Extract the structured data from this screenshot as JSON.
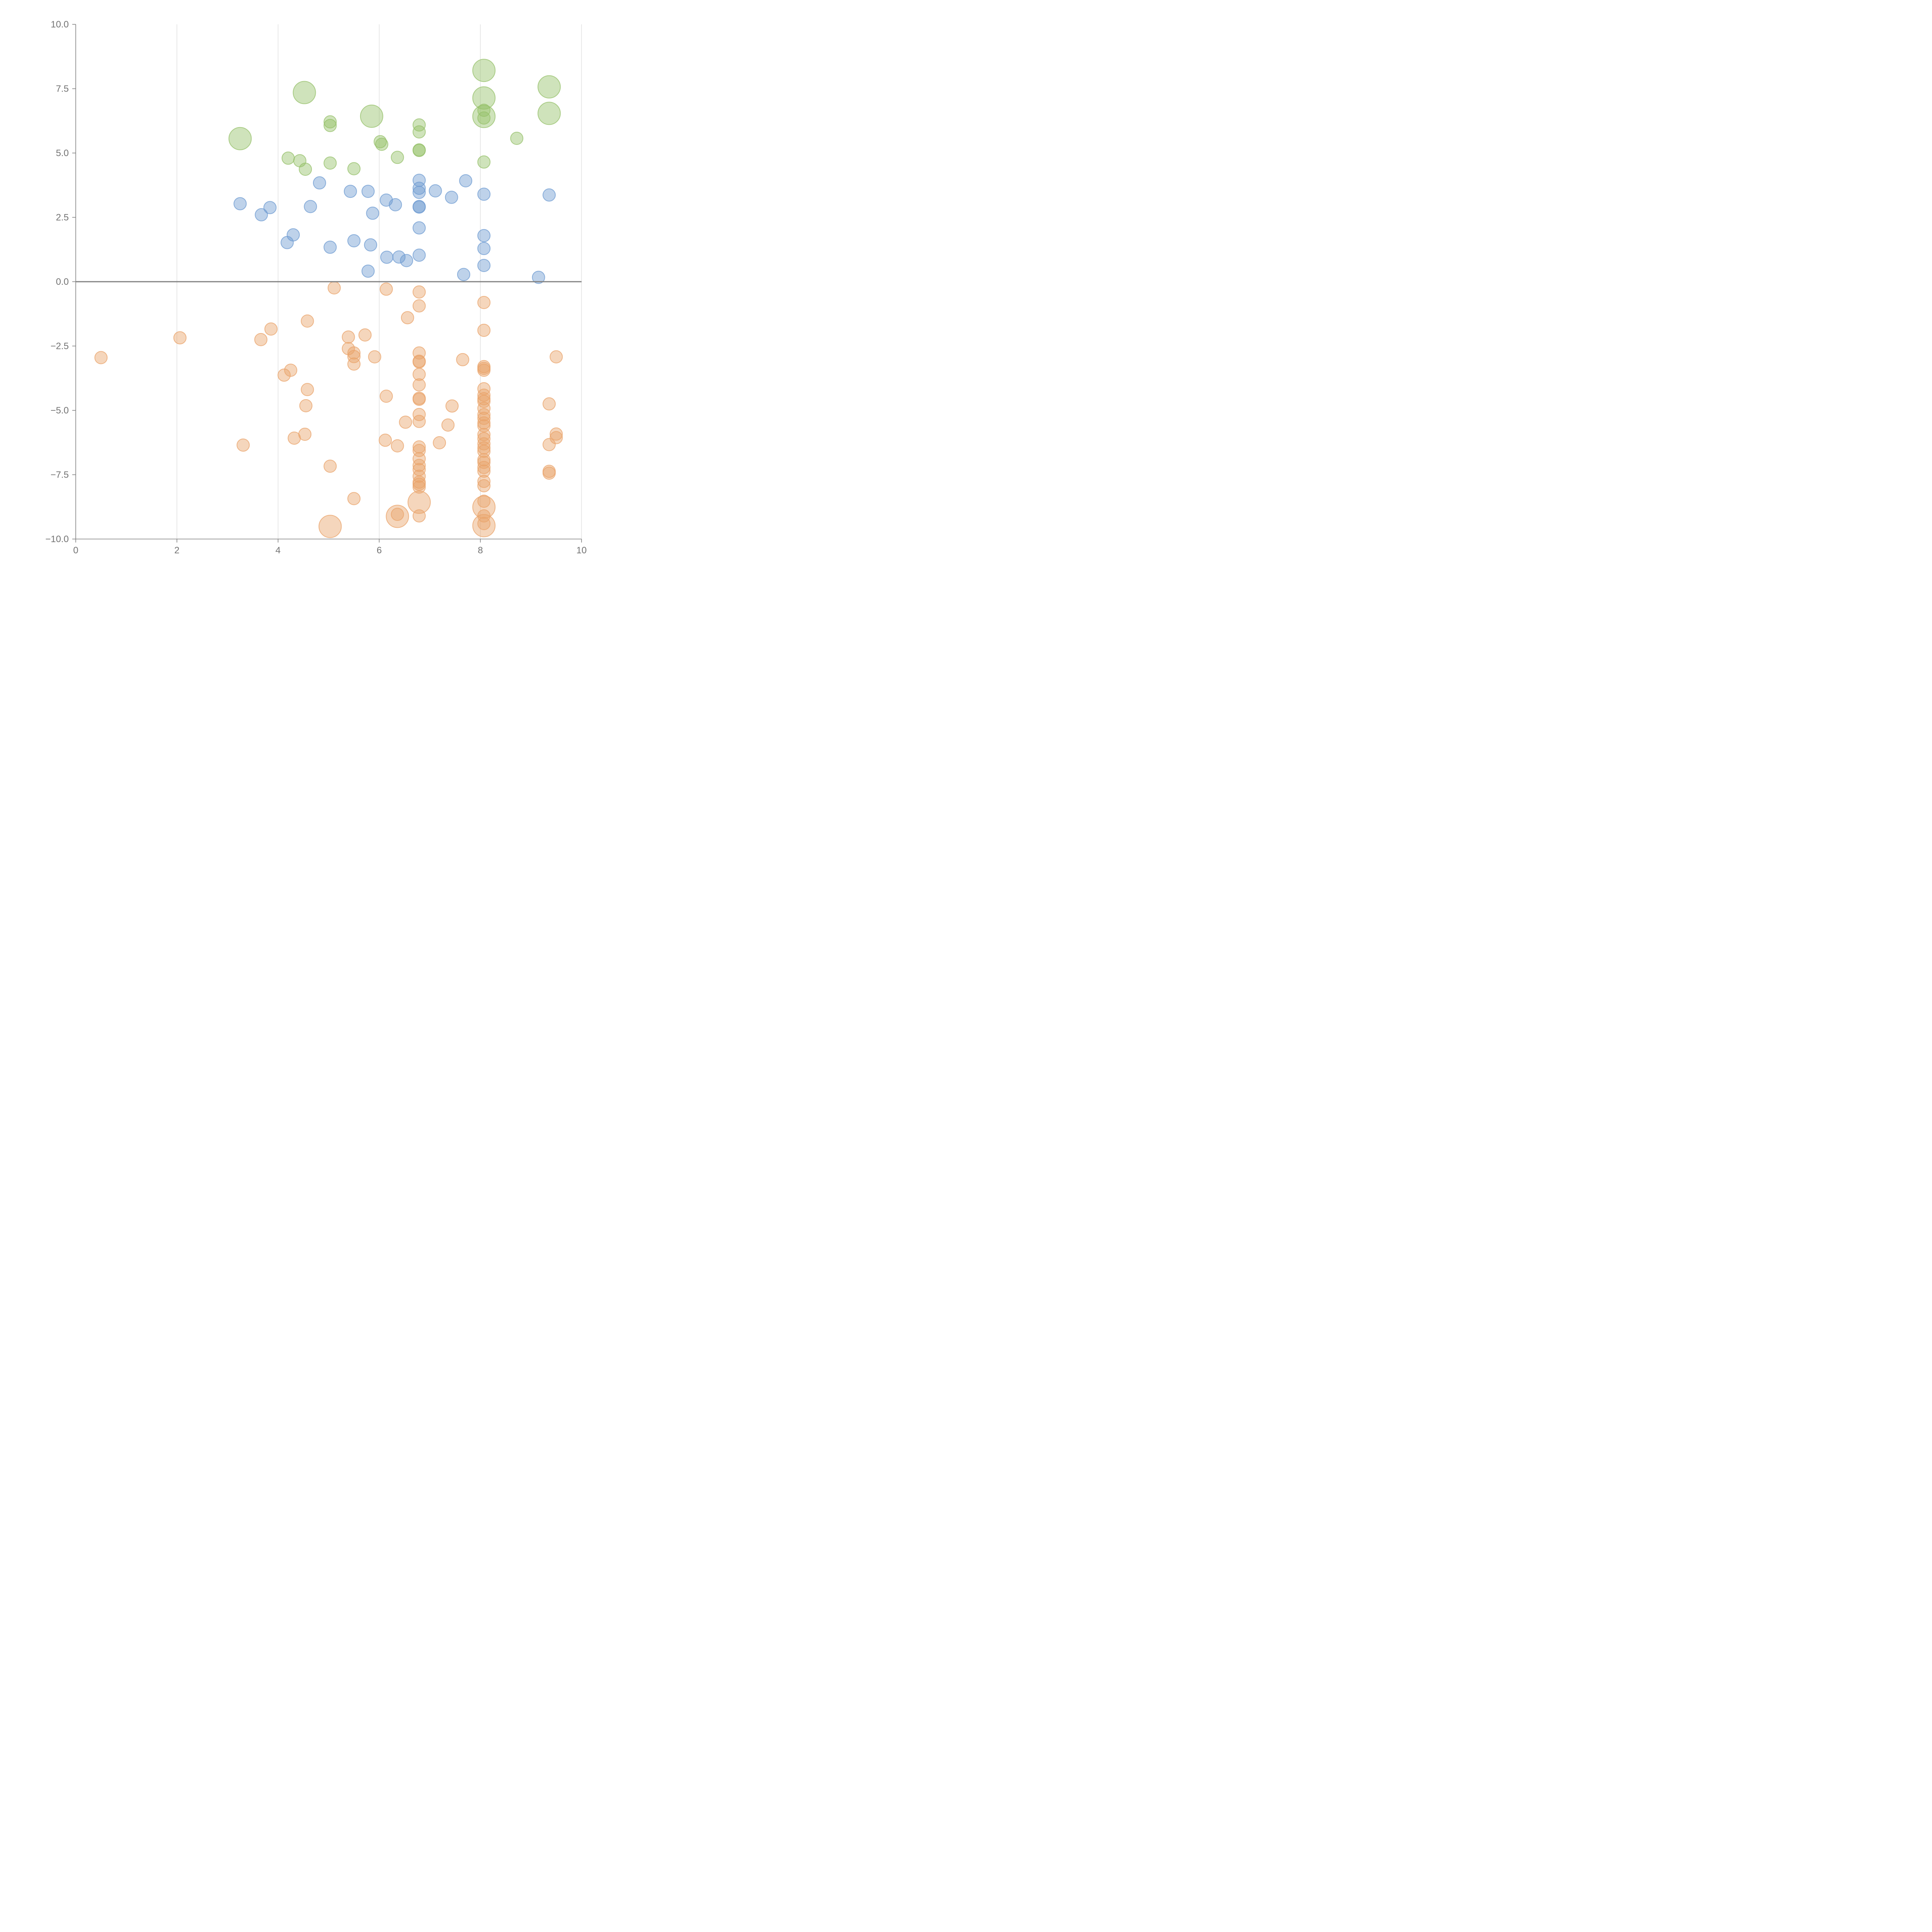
{
  "chart_data": {
    "type": "scatter",
    "title": "",
    "xlabel": "",
    "ylabel": "",
    "xlim": [
      0,
      10
    ],
    "ylim": [
      -10,
      10
    ],
    "x_ticks": [
      0,
      2,
      4,
      6,
      8,
      10
    ],
    "y_ticks": [
      10.0,
      7.5,
      5.0,
      2.5,
      0.0,
      -2.5,
      -5.0,
      -7.5,
      -10.0
    ],
    "x_tick_labels": [
      "0",
      "2",
      "4",
      "6",
      "8",
      "10"
    ],
    "y_tick_labels": [
      "10.0",
      "7.5",
      "5.0",
      "2.5",
      "0.0",
      "−2.5",
      "−5.0",
      "−7.5",
      "−10.0"
    ],
    "vertical_grid": true,
    "horizontal_grid": false,
    "zero_line": true,
    "legend": "none",
    "series": [
      {
        "color": "#95c069",
        "points": [
          [
            8.07,
            8.21,
            2
          ],
          [
            4.52,
            7.35,
            2
          ],
          [
            8.07,
            7.14,
            2
          ],
          [
            9.36,
            7.57,
            2
          ],
          [
            9.36,
            6.54,
            2
          ],
          [
            8.07,
            6.42,
            2
          ],
          [
            5.85,
            6.43,
            2
          ],
          [
            3.25,
            5.56,
            2
          ],
          [
            5.03,
            6.21,
            1
          ],
          [
            5.03,
            6.07,
            1
          ],
          [
            6.79,
            6.09,
            1
          ],
          [
            6.79,
            5.82,
            1
          ],
          [
            8.07,
            6.66,
            1
          ],
          [
            8.07,
            6.36,
            1
          ],
          [
            8.72,
            5.57,
            1
          ],
          [
            6.02,
            5.44,
            1
          ],
          [
            6.05,
            5.34,
            1
          ],
          [
            6.79,
            5.12,
            1
          ],
          [
            6.79,
            5.1,
            1
          ],
          [
            4.2,
            4.8,
            1
          ],
          [
            4.43,
            4.7,
            1
          ],
          [
            4.54,
            4.37,
            1
          ],
          [
            5.03,
            4.61,
            1
          ],
          [
            5.5,
            4.39,
            1
          ],
          [
            6.36,
            4.83,
            1
          ],
          [
            8.07,
            4.65,
            1
          ]
        ]
      },
      {
        "color": "#6e9bd1",
        "points": [
          [
            3.25,
            3.03,
            1
          ],
          [
            3.67,
            2.6,
            1
          ],
          [
            3.84,
            2.88,
            1
          ],
          [
            4.18,
            1.52,
            1
          ],
          [
            4.3,
            1.82,
            1
          ],
          [
            4.64,
            2.92,
            1
          ],
          [
            4.82,
            3.84,
            1
          ],
          [
            5.03,
            1.34,
            1
          ],
          [
            5.43,
            3.51,
            1
          ],
          [
            5.5,
            1.59,
            1
          ],
          [
            5.78,
            3.51,
            1
          ],
          [
            5.78,
            0.41,
            1
          ],
          [
            5.83,
            1.43,
            1
          ],
          [
            5.87,
            2.66,
            1
          ],
          [
            6.14,
            3.17,
            1
          ],
          [
            6.15,
            0.95,
            1
          ],
          [
            6.32,
            2.99,
            1
          ],
          [
            6.39,
            0.96,
            1
          ],
          [
            6.54,
            0.82,
            1
          ],
          [
            6.79,
            3.94,
            1
          ],
          [
            6.79,
            3.63,
            1
          ],
          [
            6.79,
            3.47,
            1
          ],
          [
            6.79,
            2.92,
            1
          ],
          [
            6.79,
            2.9,
            1
          ],
          [
            6.79,
            2.09,
            1
          ],
          [
            6.79,
            1.03,
            1
          ],
          [
            7.11,
            3.53,
            1
          ],
          [
            7.43,
            3.28,
            1
          ],
          [
            7.67,
            0.28,
            1
          ],
          [
            7.71,
            3.92,
            1
          ],
          [
            8.07,
            3.4,
            1
          ],
          [
            8.07,
            1.79,
            1
          ],
          [
            8.07,
            1.29,
            1
          ],
          [
            8.07,
            0.63,
            1
          ],
          [
            9.15,
            0.17,
            1
          ],
          [
            9.36,
            3.37,
            1
          ]
        ]
      },
      {
        "color": "#e9a36a",
        "points": [
          [
            5.03,
            -9.51,
            2
          ],
          [
            6.36,
            -9.12,
            2
          ],
          [
            6.79,
            -8.57,
            2
          ],
          [
            8.07,
            -8.76,
            2
          ],
          [
            8.07,
            -9.48,
            2
          ],
          [
            0.5,
            -2.95,
            1
          ],
          [
            2.06,
            -2.18,
            1
          ],
          [
            3.31,
            -6.35,
            1
          ],
          [
            3.66,
            -2.25,
            1
          ],
          [
            3.86,
            -1.84,
            1
          ],
          [
            4.12,
            -3.63,
            1
          ],
          [
            4.25,
            -3.44,
            1
          ],
          [
            4.32,
            -6.08,
            1
          ],
          [
            4.53,
            -5.93,
            1
          ],
          [
            4.55,
            -4.82,
            1
          ],
          [
            4.58,
            -1.53,
            1
          ],
          [
            4.58,
            -4.19,
            1
          ],
          [
            5.03,
            -7.17,
            1
          ],
          [
            5.11,
            -0.24,
            1
          ],
          [
            5.39,
            -2.15,
            1
          ],
          [
            5.39,
            -2.6,
            1
          ],
          [
            5.5,
            -2.77,
            1
          ],
          [
            5.5,
            -2.91,
            1
          ],
          [
            5.5,
            -3.2,
            1
          ],
          [
            5.5,
            -8.43,
            1
          ],
          [
            5.72,
            -2.07,
            1
          ],
          [
            5.91,
            -2.92,
            1
          ],
          [
            6.12,
            -6.16,
            1
          ],
          [
            6.14,
            -0.29,
            1
          ],
          [
            6.14,
            -4.45,
            1
          ],
          [
            6.36,
            -6.38,
            1
          ],
          [
            6.36,
            -9.04,
            1
          ],
          [
            6.52,
            -5.46,
            1
          ],
          [
            6.56,
            -1.4,
            1
          ],
          [
            6.79,
            -0.4,
            1
          ],
          [
            6.79,
            -0.94,
            1
          ],
          [
            6.79,
            -2.77,
            1
          ],
          [
            6.79,
            -3.09,
            1
          ],
          [
            6.79,
            -3.12,
            1
          ],
          [
            6.79,
            -3.6,
            1
          ],
          [
            6.79,
            -4.01,
            1
          ],
          [
            6.79,
            -4.53,
            1
          ],
          [
            6.79,
            -4.57,
            1
          ],
          [
            6.79,
            -5.16,
            1
          ],
          [
            6.79,
            -5.43,
            1
          ],
          [
            6.79,
            -6.42,
            1
          ],
          [
            6.79,
            -6.56,
            1
          ],
          [
            6.79,
            -6.88,
            1
          ],
          [
            6.79,
            -7.14,
            1
          ],
          [
            6.79,
            -7.3,
            1
          ],
          [
            6.79,
            -7.56,
            1
          ],
          [
            6.79,
            -7.79,
            1
          ],
          [
            6.79,
            -7.87,
            1
          ],
          [
            6.79,
            -7.98,
            1
          ],
          [
            6.79,
            -9.1,
            1
          ],
          [
            7.19,
            -6.26,
            1
          ],
          [
            7.36,
            -5.57,
            1
          ],
          [
            7.44,
            -4.83,
            1
          ],
          [
            7.65,
            -3.03,
            1
          ],
          [
            8.07,
            -0.81,
            1
          ],
          [
            8.07,
            -1.89,
            1
          ],
          [
            8.07,
            -3.3,
            1
          ],
          [
            8.07,
            -3.37,
            1
          ],
          [
            8.07,
            -3.44,
            1
          ],
          [
            8.07,
            -4.16,
            1
          ],
          [
            8.07,
            -4.41,
            1
          ],
          [
            8.07,
            -4.55,
            1
          ],
          [
            8.07,
            -4.65,
            1
          ],
          [
            8.07,
            -4.92,
            1
          ],
          [
            8.07,
            -5.17,
            1
          ],
          [
            8.07,
            -5.31,
            1
          ],
          [
            8.07,
            -5.49,
            1
          ],
          [
            8.07,
            -5.6,
            1
          ],
          [
            8.07,
            -5.94,
            1
          ],
          [
            8.07,
            -6.1,
            1
          ],
          [
            8.07,
            -6.3,
            1
          ],
          [
            8.07,
            -6.46,
            1
          ],
          [
            8.07,
            -6.59,
            1
          ],
          [
            8.07,
            -6.92,
            1
          ],
          [
            8.07,
            -7.02,
            1
          ],
          [
            8.07,
            -7.22,
            1
          ],
          [
            8.07,
            -7.36,
            1
          ],
          [
            8.07,
            -7.76,
            1
          ],
          [
            8.07,
            -7.93,
            1
          ],
          [
            8.07,
            -8.53,
            1
          ],
          [
            8.07,
            -9.1,
            1
          ],
          [
            8.07,
            -9.4,
            1
          ],
          [
            9.36,
            -4.75,
            1
          ],
          [
            9.36,
            -6.33,
            1
          ],
          [
            9.36,
            -7.37,
            1
          ],
          [
            9.36,
            -7.44,
            1
          ],
          [
            9.5,
            -2.92,
            1
          ],
          [
            9.5,
            -5.92,
            1
          ],
          [
            9.5,
            -6.06,
            1
          ]
        ]
      }
    ]
  }
}
